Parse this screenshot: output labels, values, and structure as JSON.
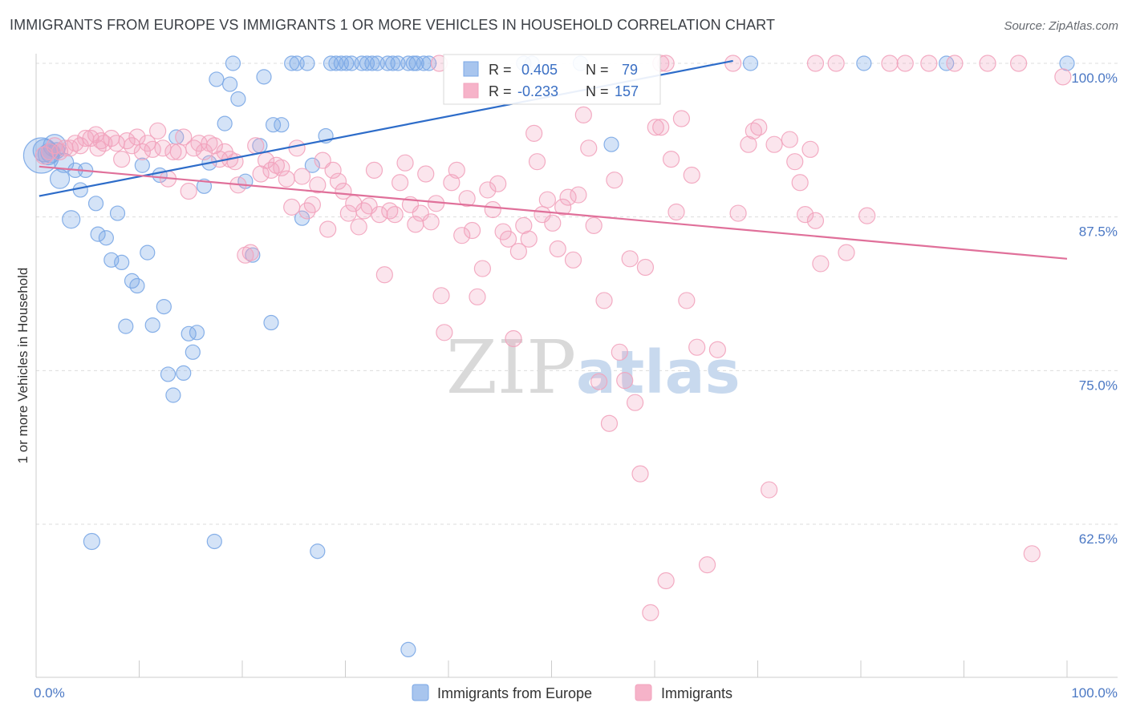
{
  "title": "IMMIGRANTS FROM EUROPE VS IMMIGRANTS 1 OR MORE VEHICLES IN HOUSEHOLD CORRELATION CHART",
  "source": "Source: ZipAtlas.com",
  "watermark": {
    "zip": "ZIP",
    "atlas": "atlas"
  },
  "legend_stats": [
    {
      "r_label": "R =",
      "r_value": "0.405",
      "n_label": "N =",
      "n_value": "79",
      "color": "#a8c5ee"
    },
    {
      "r_label": "R =",
      "r_value": "-0.233",
      "n_label": "N =",
      "n_value": "157",
      "color": "#f6b3c9"
    }
  ],
  "chart_data": {
    "type": "scatter",
    "title": "IMMIGRANTS FROM EUROPE VS IMMIGRANTS 1 OR MORE VEHICLES IN HOUSEHOLD CORRELATION CHART",
    "xlabel": "",
    "ylabel": "1 or more Vehicles in Household",
    "xlim": [
      0,
      100
    ],
    "ylim": [
      50,
      101.5
    ],
    "x_tick_labels": [
      "0.0%",
      "100.0%"
    ],
    "y_ticks": [
      62.5,
      75.0,
      87.5,
      100.0
    ],
    "y_tick_labels": [
      "62.5%",
      "75.0%",
      "87.5%",
      "100.0%"
    ],
    "grid": true,
    "series": [
      {
        "name": "Immigrants from Europe",
        "color": "#7aa7e6",
        "line_color": "#2d6cc9",
        "trend": {
          "x": [
            0.3,
            67.6
          ],
          "y": [
            89.2,
            100.2
          ]
        },
        "points": [
          [
            0.5,
            92.5,
            22
          ],
          [
            0.8,
            92.9,
            14
          ],
          [
            1.2,
            92.6,
            13
          ],
          [
            1.4,
            92.7,
            12
          ],
          [
            1.8,
            93.3,
            14
          ],
          [
            2.0,
            92.9,
            10
          ],
          [
            2.3,
            90.6,
            12
          ],
          [
            2.7,
            91.9,
            12
          ],
          [
            3.4,
            87.3,
            11
          ],
          [
            3.8,
            91.3,
            9
          ],
          [
            4.3,
            89.7,
            9
          ],
          [
            4.8,
            91.3,
            9
          ],
          [
            5.4,
            61.1,
            10
          ],
          [
            5.8,
            88.6,
            9
          ],
          [
            6.0,
            86.1,
            9
          ],
          [
            6.8,
            85.8,
            9
          ],
          [
            7.3,
            84.0,
            9
          ],
          [
            7.9,
            87.8,
            9
          ],
          [
            8.3,
            83.8,
            9
          ],
          [
            8.7,
            78.6,
            9
          ],
          [
            9.3,
            82.3,
            9
          ],
          [
            9.8,
            81.9,
            9
          ],
          [
            10.3,
            91.7,
            9
          ],
          [
            10.8,
            84.6,
            9
          ],
          [
            11.3,
            78.7,
            9
          ],
          [
            12.0,
            90.9,
            9
          ],
          [
            12.4,
            80.2,
            9
          ],
          [
            12.8,
            74.7,
            9
          ],
          [
            13.3,
            73.0,
            9
          ],
          [
            13.6,
            94.0,
            9
          ],
          [
            14.3,
            74.8,
            9
          ],
          [
            14.8,
            78.0,
            9
          ],
          [
            15.2,
            76.5,
            9
          ],
          [
            15.6,
            78.1,
            9
          ],
          [
            16.3,
            90.0,
            9
          ],
          [
            16.8,
            91.9,
            9
          ],
          [
            17.3,
            61.1,
            9
          ],
          [
            17.5,
            98.7,
            9
          ],
          [
            18.3,
            95.1,
            9
          ],
          [
            18.8,
            98.3,
            9
          ],
          [
            19.1,
            100.0,
            9
          ],
          [
            19.6,
            97.1,
            9
          ],
          [
            20.3,
            90.4,
            9
          ],
          [
            21.0,
            84.4,
            9
          ],
          [
            21.7,
            93.3,
            9
          ],
          [
            22.1,
            98.9,
            9
          ],
          [
            22.8,
            78.9,
            9
          ],
          [
            23.0,
            95.0,
            9
          ],
          [
            23.8,
            95.0,
            9
          ],
          [
            24.8,
            100.0,
            9
          ],
          [
            25.3,
            100.0,
            9
          ],
          [
            25.8,
            87.4,
            9
          ],
          [
            26.3,
            100.0,
            9
          ],
          [
            26.8,
            91.7,
            9
          ],
          [
            27.3,
            60.3,
            9
          ],
          [
            28.1,
            94.1,
            9
          ],
          [
            28.6,
            100.0,
            9
          ],
          [
            29.1,
            100.0,
            9
          ],
          [
            29.6,
            100.0,
            9
          ],
          [
            30.1,
            100.0,
            9
          ],
          [
            30.6,
            100.0,
            9
          ],
          [
            31.6,
            100.0,
            9
          ],
          [
            32.1,
            100.0,
            9
          ],
          [
            32.6,
            100.0,
            9
          ],
          [
            33.1,
            100.0,
            9
          ],
          [
            34.1,
            100.0,
            9
          ],
          [
            34.6,
            100.0,
            9
          ],
          [
            35.1,
            100.0,
            9
          ],
          [
            36.1,
            100.0,
            9
          ],
          [
            36.6,
            100.0,
            9
          ],
          [
            36.9,
            100.0,
            9
          ],
          [
            37.6,
            100.0,
            9
          ],
          [
            38.1,
            100.0,
            9
          ],
          [
            47.3,
            100.0,
            9
          ],
          [
            48.1,
            100.0,
            9
          ],
          [
            52.8,
            100.0,
            9
          ],
          [
            55.8,
            93.4,
            9
          ],
          [
            69.3,
            100.0,
            9
          ],
          [
            80.3,
            100.0,
            9
          ],
          [
            88.3,
            100.0,
            9
          ],
          [
            100.0,
            100.0,
            9
          ],
          [
            36.1,
            52.3,
            9
          ]
        ]
      },
      {
        "name": "Immigrants",
        "color": "#f2a3bd",
        "line_color": "#e0709a",
        "trend": {
          "x": [
            0.3,
            100.0
          ],
          "y": [
            91.6,
            84.1
          ]
        },
        "points": [
          [
            0.8,
            92.5,
            11
          ],
          [
            1.3,
            92.8,
            10
          ],
          [
            1.8,
            93.3,
            10
          ],
          [
            2.3,
            92.8,
            10
          ],
          [
            2.8,
            93.1,
            10
          ],
          [
            3.3,
            93.1,
            10
          ],
          [
            3.8,
            93.5,
            10
          ],
          [
            4.3,
            93.3,
            10
          ],
          [
            4.8,
            93.9,
            10
          ],
          [
            5.3,
            93.9,
            10
          ],
          [
            5.8,
            94.2,
            10
          ],
          [
            6.3,
            93.7,
            10
          ],
          [
            6.0,
            93.1,
            10
          ],
          [
            6.6,
            93.5,
            10
          ],
          [
            7.3,
            93.9,
            10
          ],
          [
            7.8,
            93.5,
            10
          ],
          [
            8.3,
            92.2,
            10
          ],
          [
            8.8,
            93.7,
            10
          ],
          [
            9.3,
            93.3,
            10
          ],
          [
            9.8,
            94.0,
            10
          ],
          [
            10.3,
            92.8,
            10
          ],
          [
            10.8,
            93.5,
            10
          ],
          [
            11.3,
            93.0,
            10
          ],
          [
            11.8,
            94.5,
            10
          ],
          [
            12.3,
            93.1,
            10
          ],
          [
            12.8,
            90.6,
            10
          ],
          [
            13.3,
            92.8,
            10
          ],
          [
            13.8,
            92.8,
            10
          ],
          [
            14.3,
            94.0,
            10
          ],
          [
            14.8,
            89.6,
            10
          ],
          [
            15.3,
            93.1,
            10
          ],
          [
            15.8,
            93.5,
            10
          ],
          [
            16.3,
            92.8,
            10
          ],
          [
            16.8,
            93.5,
            10
          ],
          [
            17.3,
            93.3,
            10
          ],
          [
            17.8,
            92.2,
            10
          ],
          [
            18.3,
            92.8,
            10
          ],
          [
            18.8,
            92.2,
            10
          ],
          [
            19.3,
            92.0,
            10
          ],
          [
            19.6,
            90.1,
            10
          ],
          [
            20.3,
            84.4,
            10
          ],
          [
            20.8,
            84.6,
            10
          ],
          [
            21.3,
            93.3,
            10
          ],
          [
            21.8,
            91.0,
            10
          ],
          [
            22.3,
            92.1,
            10
          ],
          [
            22.8,
            91.3,
            10
          ],
          [
            23.3,
            91.7,
            10
          ],
          [
            23.8,
            91.5,
            10
          ],
          [
            24.3,
            90.6,
            10
          ],
          [
            24.8,
            88.3,
            10
          ],
          [
            25.3,
            93.1,
            10
          ],
          [
            25.8,
            90.8,
            10
          ],
          [
            26.3,
            88.0,
            10
          ],
          [
            26.8,
            88.5,
            10
          ],
          [
            27.3,
            90.1,
            10
          ],
          [
            27.8,
            92.1,
            10
          ],
          [
            28.3,
            86.5,
            10
          ],
          [
            28.8,
            91.3,
            10
          ],
          [
            29.3,
            90.4,
            10
          ],
          [
            29.8,
            89.6,
            10
          ],
          [
            30.3,
            87.8,
            10
          ],
          [
            30.8,
            88.6,
            10
          ],
          [
            31.3,
            86.7,
            10
          ],
          [
            31.8,
            88.0,
            10
          ],
          [
            32.3,
            88.4,
            10
          ],
          [
            32.8,
            91.3,
            10
          ],
          [
            33.3,
            87.7,
            10
          ],
          [
            33.8,
            82.8,
            10
          ],
          [
            34.3,
            88.0,
            10
          ],
          [
            34.8,
            87.7,
            10
          ],
          [
            35.3,
            90.3,
            10
          ],
          [
            35.8,
            91.9,
            10
          ],
          [
            36.3,
            88.5,
            10
          ],
          [
            36.8,
            86.9,
            10
          ],
          [
            37.3,
            87.8,
            10
          ],
          [
            37.8,
            91.0,
            10
          ],
          [
            38.3,
            87.1,
            10
          ],
          [
            38.8,
            88.6,
            10
          ],
          [
            39.3,
            81.1,
            10
          ],
          [
            39.6,
            78.1,
            10
          ],
          [
            40.3,
            90.3,
            10
          ],
          [
            40.8,
            91.3,
            10
          ],
          [
            41.3,
            86.0,
            10
          ],
          [
            41.8,
            89.0,
            10
          ],
          [
            42.3,
            86.4,
            10
          ],
          [
            42.8,
            81.0,
            10
          ],
          [
            43.3,
            83.3,
            10
          ],
          [
            43.8,
            89.7,
            10
          ],
          [
            44.3,
            88.1,
            10
          ],
          [
            44.8,
            90.2,
            10
          ],
          [
            45.3,
            86.3,
            10
          ],
          [
            45.8,
            85.7,
            10
          ],
          [
            46.3,
            77.6,
            10
          ],
          [
            46.8,
            84.7,
            10
          ],
          [
            47.3,
            86.8,
            10
          ],
          [
            47.8,
            85.7,
            10
          ],
          [
            48.3,
            94.3,
            10
          ],
          [
            48.6,
            92.0,
            10
          ],
          [
            49.1,
            87.7,
            10
          ],
          [
            49.6,
            88.9,
            10
          ],
          [
            50.1,
            87.0,
            10
          ],
          [
            50.6,
            84.9,
            10
          ],
          [
            51.1,
            88.3,
            10
          ],
          [
            51.6,
            89.1,
            10
          ],
          [
            52.1,
            84.0,
            10
          ],
          [
            52.6,
            89.3,
            10
          ],
          [
            53.1,
            95.8,
            10
          ],
          [
            53.6,
            93.1,
            10
          ],
          [
            54.1,
            86.8,
            10
          ],
          [
            54.6,
            74.1,
            10
          ],
          [
            55.1,
            80.7,
            10
          ],
          [
            55.6,
            70.7,
            10
          ],
          [
            56.1,
            90.5,
            10
          ],
          [
            56.6,
            76.5,
            10
          ],
          [
            57.1,
            74.2,
            10
          ],
          [
            57.6,
            84.1,
            10
          ],
          [
            58.1,
            72.4,
            10
          ],
          [
            58.6,
            66.6,
            10
          ],
          [
            59.1,
            83.4,
            10
          ],
          [
            59.6,
            55.3,
            10
          ],
          [
            60.1,
            94.8,
            10
          ],
          [
            60.6,
            94.8,
            10
          ],
          [
            61.1,
            57.9,
            10
          ],
          [
            61.6,
            92.2,
            10
          ],
          [
            62.1,
            87.9,
            10
          ],
          [
            62.6,
            95.5,
            10
          ],
          [
            63.1,
            80.7,
            10
          ],
          [
            63.6,
            90.9,
            10
          ],
          [
            64.1,
            76.9,
            10
          ],
          [
            65.1,
            59.2,
            10
          ],
          [
            66.1,
            76.7,
            10
          ],
          [
            67.6,
            100.0,
            10
          ],
          [
            68.1,
            87.8,
            10
          ],
          [
            69.1,
            93.4,
            10
          ],
          [
            69.6,
            94.5,
            10
          ],
          [
            70.1,
            94.8,
            10
          ],
          [
            71.1,
            65.3,
            10
          ],
          [
            71.6,
            93.4,
            10
          ],
          [
            73.1,
            93.8,
            10
          ],
          [
            73.6,
            92.0,
            10
          ],
          [
            74.1,
            90.3,
            10
          ],
          [
            74.6,
            87.7,
            10
          ],
          [
            75.1,
            93.0,
            10
          ],
          [
            75.6,
            87.2,
            10
          ],
          [
            76.1,
            83.7,
            10
          ],
          [
            78.6,
            84.6,
            10
          ],
          [
            80.6,
            87.6,
            10
          ],
          [
            82.8,
            100.0,
            10
          ],
          [
            84.3,
            100.0,
            10
          ],
          [
            86.6,
            100.0,
            10
          ],
          [
            89.1,
            100.0,
            10
          ],
          [
            92.3,
            100.0,
            10
          ],
          [
            95.3,
            100.0,
            10
          ],
          [
            96.6,
            60.1,
            10
          ],
          [
            99.6,
            98.9,
            10
          ],
          [
            39.1,
            100.0,
            10
          ],
          [
            60.6,
            100.0,
            10
          ],
          [
            61.1,
            100.0,
            10
          ],
          [
            75.6,
            100.0,
            10
          ],
          [
            77.6,
            100.0,
            10
          ]
        ]
      }
    ]
  }
}
